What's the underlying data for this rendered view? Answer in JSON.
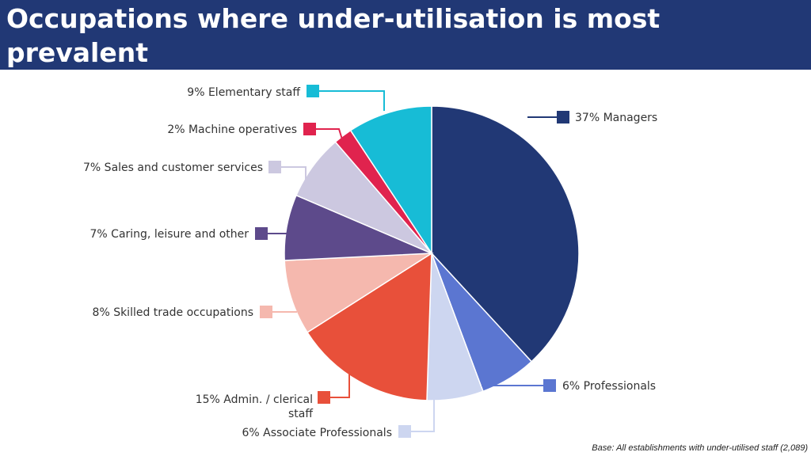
{
  "header": {
    "title": "Occupations where under-utilisation is most prevalent"
  },
  "chart_data": {
    "type": "pie",
    "title": "Occupations where under-utilisation is most prevalent",
    "start": "12 o'clock",
    "direction": "clockwise",
    "slices": [
      {
        "label": "37% Managers",
        "name": "Managers",
        "value": 37,
        "color": "#213875"
      },
      {
        "label": "6% Professionals",
        "name": "Professionals",
        "value": 6,
        "color": "#5B76D1"
      },
      {
        "label": "6% Associate Professionals",
        "name": "Associate Professionals",
        "value": 6,
        "color": "#CDD6F0"
      },
      {
        "label": "15% Admin. / clerical staff",
        "name": "Admin. / clerical staff",
        "value": 15,
        "color": "#E8503A"
      },
      {
        "label": "8% Skilled trade occupations",
        "name": "Skilled trade occupations",
        "value": 8,
        "color": "#F5B8AE"
      },
      {
        "label": "7% Caring, leisure and other",
        "name": "Caring, leisure and other",
        "value": 7,
        "color": "#5D4A8B"
      },
      {
        "label": "7% Sales and customer services",
        "name": "Sales and customer services",
        "value": 7,
        "color": "#CCC8E0"
      },
      {
        "label": "2% Machine operatives",
        "name": "Machine operatives",
        "value": 2,
        "color": "#E0234E"
      },
      {
        "label": "9% Elementary staff",
        "name": "Elementary staff",
        "value": 9,
        "color": "#17BCD6"
      }
    ]
  },
  "footnote": "Base: All establishments with under-utilised staff (2,089)"
}
